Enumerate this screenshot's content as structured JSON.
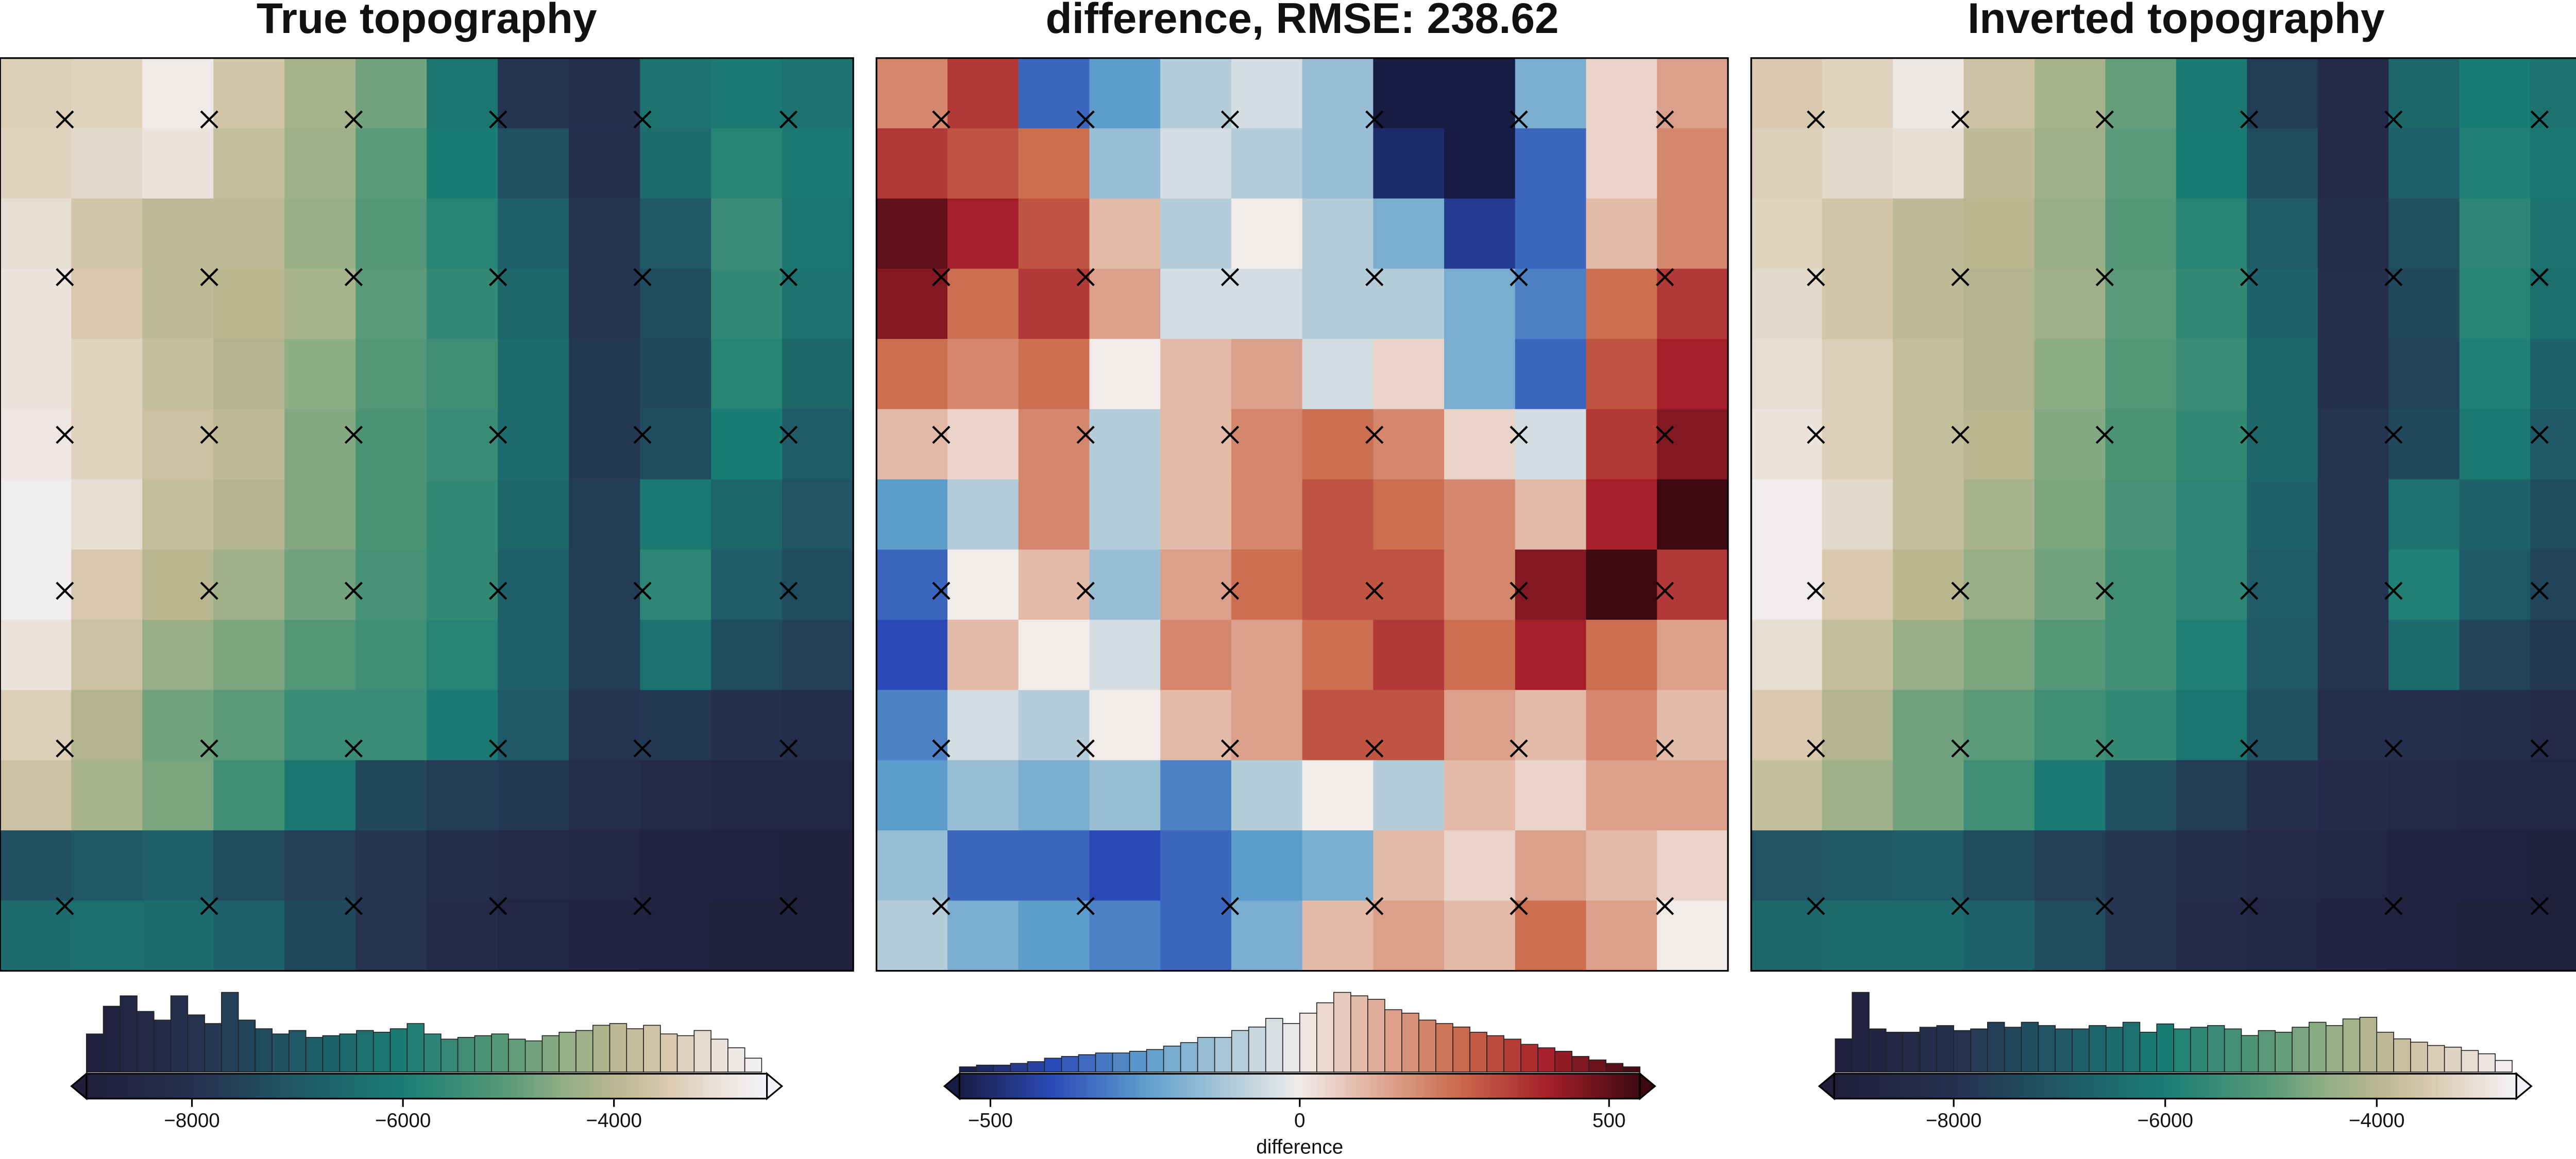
{
  "chart_data": [
    {
      "type": "heatmap",
      "title": "True topography",
      "colorscale": [
        [
          -9000,
          "#201e3b"
        ],
        [
          -8000,
          "#25304f"
        ],
        [
          -7000,
          "#1f5866"
        ],
        [
          -6000,
          "#1a7d73"
        ],
        [
          -5000,
          "#5a9a78"
        ],
        [
          -4500,
          "#8fad84"
        ],
        [
          -4000,
          "#b9b690"
        ],
        [
          -3500,
          "#d8c9ae"
        ],
        [
          -3000,
          "#ebe3dc"
        ],
        [
          -2550,
          "#f3f2f7"
        ]
      ],
      "z": [
        [
          -3400,
          -3300,
          -2800,
          -3600,
          -4200,
          -4800,
          -6200,
          -7900,
          -8000,
          -6300,
          -6100,
          -6300
        ],
        [
          -3300,
          -3200,
          -3000,
          -3800,
          -4300,
          -5000,
          -6000,
          -7200,
          -8000,
          -6500,
          -5800,
          -6100
        ],
        [
          -3100,
          -3600,
          -3900,
          -3900,
          -4400,
          -5100,
          -5800,
          -6800,
          -7900,
          -7000,
          -5500,
          -6200
        ],
        [
          -3000,
          -3500,
          -3900,
          -4000,
          -4200,
          -5000,
          -5600,
          -6600,
          -7900,
          -7300,
          -5600,
          -6300
        ],
        [
          -3000,
          -3300,
          -3800,
          -4100,
          -4500,
          -5100,
          -5400,
          -6500,
          -7800,
          -7400,
          -5800,
          -6600
        ],
        [
          -2900,
          -3300,
          -3700,
          -3900,
          -4600,
          -5200,
          -5500,
          -6500,
          -7800,
          -7300,
          -6000,
          -6900
        ],
        [
          -2700,
          -3100,
          -3800,
          -4100,
          -4600,
          -5200,
          -5600,
          -6600,
          -7700,
          -6100,
          -6600,
          -7100
        ],
        [
          -2700,
          -3500,
          -4000,
          -4300,
          -4800,
          -5300,
          -5600,
          -6800,
          -7700,
          -5700,
          -6900,
          -7300
        ],
        [
          -3000,
          -3700,
          -4400,
          -4700,
          -5100,
          -5400,
          -5800,
          -6800,
          -7700,
          -6300,
          -7300,
          -7600
        ],
        [
          -3400,
          -4100,
          -4800,
          -5000,
          -5500,
          -5500,
          -6100,
          -7000,
          -7900,
          -7800,
          -8000,
          -8200
        ],
        [
          -3700,
          -4200,
          -4700,
          -5400,
          -6200,
          -7400,
          -7700,
          -7800,
          -8100,
          -8300,
          -8500,
          -8600
        ],
        [
          -7200,
          -7000,
          -6800,
          -7300,
          -7600,
          -7900,
          -8200,
          -8400,
          -8500,
          -8700,
          -8800,
          -8900
        ],
        [
          -6500,
          -6400,
          -6500,
          -6700,
          -7400,
          -7900,
          -8300,
          -8600,
          -8700,
          -8800,
          -8900,
          -8900
        ]
      ],
      "colorbar": {
        "xlim": [
          -9000,
          -2550
        ],
        "xticks": [
          {
            "value": -8000,
            "label": "−8000"
          },
          {
            "value": -6000,
            "label": "−6000"
          },
          {
            "value": -4000,
            "label": "−4000"
          }
        ],
        "bins": [
          -9000,
          -8840,
          -8680,
          -8520,
          -8360,
          -8200,
          -8040,
          -7880,
          -7720,
          -7560,
          -7400,
          -7240,
          -7080,
          -6920,
          -6760,
          -6600,
          -6440,
          -6280,
          -6120,
          -5960,
          -5800,
          -5640,
          -5480,
          -5320,
          -5160,
          -5000,
          -4840,
          -4680,
          -4520,
          -4360,
          -4200,
          -4040,
          -3880,
          -3720,
          -3560,
          -3400,
          -3240,
          -3080,
          -2920,
          -2760,
          -2600
        ],
        "counts": [
          22,
          38,
          44,
          35,
          30,
          44,
          33,
          28,
          46,
          30,
          25,
          22,
          24,
          20,
          21,
          22,
          24,
          23,
          25,
          28,
          22,
          19,
          20,
          21,
          22,
          19,
          18,
          21,
          23,
          24,
          27,
          28,
          25,
          27,
          22,
          21,
          24,
          19,
          14,
          8
        ]
      }
    },
    {
      "type": "heatmap",
      "title": "difference, RMSE: 238.62",
      "xlabel": "difference",
      "colorscale": [
        [
          -550,
          "#181c43"
        ],
        [
          -400,
          "#2b4ab8"
        ],
        [
          -250,
          "#5d9dcb"
        ],
        [
          -100,
          "#b5cdd9"
        ],
        [
          0,
          "#f1ecea"
        ],
        [
          100,
          "#e3b9a8"
        ],
        [
          250,
          "#cc6e50"
        ],
        [
          400,
          "#a51f2a"
        ],
        [
          550,
          "#3c0911"
        ]
      ],
      "z": [
        [
          200,
          350,
          -350,
          -250,
          -100,
          -50,
          -150,
          -550,
          -550,
          -200,
          50,
          150
        ],
        [
          350,
          300,
          250,
          -150,
          -50,
          -100,
          -150,
          -500,
          -550,
          -350,
          50,
          200
        ],
        [
          500,
          400,
          300,
          100,
          -100,
          0,
          -100,
          -200,
          -450,
          -350,
          100,
          200
        ],
        [
          450,
          250,
          350,
          150,
          -50,
          -50,
          -100,
          -100,
          -200,
          -300,
          250,
          350
        ],
        [
          250,
          200,
          250,
          0,
          100,
          150,
          -50,
          50,
          -200,
          -350,
          300,
          400
        ],
        [
          100,
          50,
          200,
          -100,
          100,
          200,
          250,
          200,
          50,
          -50,
          350,
          450
        ],
        [
          -250,
          -100,
          200,
          -100,
          100,
          200,
          300,
          250,
          200,
          100,
          400,
          550
        ],
        [
          -350,
          0,
          100,
          -150,
          150,
          250,
          300,
          300,
          200,
          450,
          550,
          350
        ],
        [
          -400,
          100,
          0,
          -50,
          200,
          150,
          250,
          350,
          250,
          400,
          250,
          150
        ],
        [
          -300,
          -50,
          -100,
          0,
          100,
          150,
          300,
          300,
          150,
          100,
          200,
          100
        ],
        [
          -250,
          -150,
          -200,
          -150,
          -300,
          -100,
          0,
          -100,
          100,
          50,
          150,
          150
        ],
        [
          -150,
          -350,
          -350,
          -400,
          -350,
          -250,
          -200,
          100,
          50,
          150,
          100,
          50
        ],
        [
          -100,
          -200,
          -250,
          -300,
          -350,
          -200,
          100,
          150,
          100,
          250,
          150,
          0
        ]
      ],
      "colorbar": {
        "xlim": [
          -550,
          550
        ],
        "xticks": [
          {
            "value": -500,
            "label": "−500"
          },
          0,
          500
        ],
        "bins": [
          -550,
          -522.5,
          -495,
          -467.5,
          -440,
          -412.5,
          -385,
          -357.5,
          -330,
          -302.5,
          -275,
          -247.5,
          -220,
          -192.5,
          -165,
          -137.5,
          -110,
          -82.5,
          -55,
          -27.5,
          0,
          27.5,
          55,
          82.5,
          110,
          137.5,
          165,
          192.5,
          220,
          247.5,
          275,
          302.5,
          330,
          357.5,
          385,
          412.5,
          440,
          467.5,
          495,
          522.5,
          550
        ],
        "counts": [
          3,
          4,
          4,
          5,
          6,
          8,
          9,
          10,
          11,
          11,
          12,
          13,
          15,
          17,
          20,
          20,
          24,
          26,
          31,
          28,
          34,
          40,
          46,
          44,
          42,
          36,
          34,
          30,
          28,
          26,
          23,
          21,
          19,
          16,
          14,
          12,
          9,
          7,
          5,
          3
        ]
      }
    },
    {
      "type": "heatmap",
      "title": "Inverted topography",
      "colorscale": [
        [
          -9130,
          "#201e3b"
        ],
        [
          -8000,
          "#25304f"
        ],
        [
          -7000,
          "#1f5866"
        ],
        [
          -6000,
          "#1a7d73"
        ],
        [
          -5000,
          "#5a9a78"
        ],
        [
          -4500,
          "#8fad84"
        ],
        [
          -4000,
          "#b9b690"
        ],
        [
          -3500,
          "#d8c9ae"
        ],
        [
          -3000,
          "#ebe3dc"
        ],
        [
          -2680,
          "#f3f2f7"
        ]
      ],
      "z": [
        [
          -3500,
          -3300,
          -2900,
          -3700,
          -4200,
          -4900,
          -6100,
          -7700,
          -8300,
          -6600,
          -6000,
          -6300
        ],
        [
          -3400,
          -3200,
          -3100,
          -3900,
          -4300,
          -5000,
          -6000,
          -7300,
          -8300,
          -6800,
          -5900,
          -6200
        ],
        [
          -3300,
          -3600,
          -3900,
          -4000,
          -4400,
          -5100,
          -5800,
          -6900,
          -8200,
          -7200,
          -5700,
          -6300
        ],
        [
          -3200,
          -3600,
          -3900,
          -4100,
          -4300,
          -5000,
          -5600,
          -6700,
          -8100,
          -7400,
          -5800,
          -6400
        ],
        [
          -3100,
          -3400,
          -3800,
          -4100,
          -4500,
          -5100,
          -5500,
          -6600,
          -8000,
          -7500,
          -5900,
          -6700
        ],
        [
          -3000,
          -3400,
          -3800,
          -4000,
          -4600,
          -5200,
          -5600,
          -6600,
          -7900,
          -7400,
          -6100,
          -7000
        ],
        [
          -2800,
          -3200,
          -3800,
          -4200,
          -4700,
          -5300,
          -5700,
          -6700,
          -7900,
          -6300,
          -6700,
          -7300
        ],
        [
          -2800,
          -3500,
          -4000,
          -4400,
          -4800,
          -5400,
          -5700,
          -6900,
          -7900,
          -5900,
          -7000,
          -7500
        ],
        [
          -3100,
          -3800,
          -4400,
          -4700,
          -5100,
          -5400,
          -5900,
          -7000,
          -7900,
          -6500,
          -7500,
          -7800
        ],
        [
          -3500,
          -4100,
          -4800,
          -5000,
          -5400,
          -5600,
          -6200,
          -7200,
          -8100,
          -8000,
          -8200,
          -8400
        ],
        [
          -3800,
          -4300,
          -4800,
          -5400,
          -6100,
          -7200,
          -7700,
          -8000,
          -8300,
          -8500,
          -8600,
          -8700
        ],
        [
          -7100,
          -7000,
          -6900,
          -7300,
          -7600,
          -7900,
          -8200,
          -8500,
          -8700,
          -8800,
          -8900,
          -9000
        ],
        [
          -6600,
          -6500,
          -6500,
          -6700,
          -7300,
          -7900,
          -8300,
          -8600,
          -8800,
          -8900,
          -9000,
          -9000
        ]
      ],
      "colorbar": {
        "xlim": [
          -9130,
          -2680
        ],
        "xticks": [
          {
            "value": -8000,
            "label": "−8000"
          },
          {
            "value": -6000,
            "label": "−6000"
          },
          {
            "value": -4000,
            "label": "−4000"
          }
        ],
        "bins": [
          -9120,
          -8960,
          -8800,
          -8640,
          -8480,
          -8320,
          -8160,
          -8000,
          -7840,
          -7680,
          -7520,
          -7360,
          -7200,
          -7040,
          -6880,
          -6720,
          -6560,
          -6400,
          -6240,
          -6080,
          -5920,
          -5760,
          -5600,
          -5440,
          -5280,
          -5120,
          -4960,
          -4800,
          -4640,
          -4480,
          -4320,
          -4160,
          -4000,
          -3840,
          -3680,
          -3520,
          -3360,
          -3200,
          -3040,
          -2880,
          -2720
        ],
        "counts": [
          20,
          48,
          26,
          24,
          24,
          27,
          28,
          25,
          26,
          30,
          27,
          30,
          28,
          26,
          26,
          28,
          27,
          30,
          24,
          29,
          26,
          27,
          28,
          26,
          22,
          25,
          24,
          27,
          30,
          28,
          32,
          33,
          24,
          20,
          18,
          16,
          15,
          13,
          11,
          7
        ]
      }
    }
  ]
}
